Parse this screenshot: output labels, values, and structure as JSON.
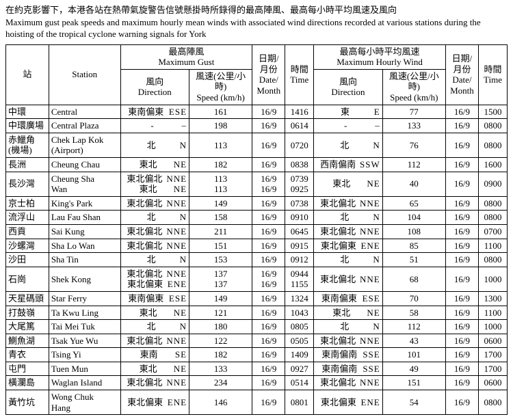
{
  "caption": {
    "zh": "在約克影響下，本港各站在熱帶氣旋警告信號懸掛時所錄得的最高陣風、最高每小時平均風速及風向",
    "en": "Maximum gust peak speeds and maximum hourly mean winds with associated wind directions recorded at various stations during   the hoisting of the tropical cyclone warning signals for York"
  },
  "headers": {
    "station_zh": "站",
    "station_en": "Station",
    "gust_group": "最高陣風\nMaximum Gust",
    "hourly_group": "最高每小時平均風速\nMaximum Hourly Wind",
    "dir": "風向\nDirection",
    "speed": "風速(公里/小時)\nSpeed (km/h)",
    "date": "日期/\n月份\nDate/\nMonth",
    "time": "時間\nTime"
  },
  "col_widths": {
    "stn_zh": 60,
    "stn_en": 100,
    "g_dir": 96,
    "g_spd": 88,
    "g_date": 46,
    "g_time": 40,
    "h_dir": 96,
    "h_spd": 88,
    "h_date": 46,
    "h_time": 40
  },
  "rows": [
    {
      "stn_zh": "中環",
      "stn_en": "Central",
      "g_dir_cn": "東南偏東",
      "g_dir_en": "ESE",
      "g_spd": "161",
      "g_date": "16/9",
      "g_time": "1416",
      "h_dir_cn": "東",
      "h_dir_en": "E",
      "h_spd": "77",
      "h_date": "16/9",
      "h_time": "1500"
    },
    {
      "stn_zh": "中環廣場",
      "stn_en": "Central Plaza",
      "g_dir_cn": "-",
      "g_dir_en": "–",
      "g_spd": "198",
      "g_date": "16/9",
      "g_time": "0614",
      "h_dir_cn": "-",
      "h_dir_en": "–",
      "h_spd": "133",
      "h_date": "16/9",
      "h_time": "0800"
    },
    {
      "stn_zh": "赤鱲角\n(機場)",
      "stn_en": "Chek Lap Kok\n(Airport)",
      "g_dir_cn": "北",
      "g_dir_en": "N",
      "g_spd": "113",
      "g_date": "16/9",
      "g_time": "0720",
      "h_dir_cn": "北",
      "h_dir_en": "N",
      "h_spd": "76",
      "h_date": "16/9",
      "h_time": "0800"
    },
    {
      "stn_zh": "長洲",
      "stn_en": "Cheung Chau",
      "g_dir_cn": "東北",
      "g_dir_en": "NE",
      "g_spd": "182",
      "g_date": "16/9",
      "g_time": "0838",
      "h_dir_cn": "西南偏南",
      "h_dir_en": "SSW",
      "h_spd": "112",
      "h_date": "16/9",
      "h_time": "1600"
    },
    {
      "stn_zh": "長沙灣",
      "stn_en": "Cheung Sha\nWan",
      "g_dir_cn": "東北偏北\n東北",
      "g_dir_en": "NNE\nNE",
      "g_spd": "113\n113",
      "g_date": "16/9\n16/9",
      "g_time": "0739\n0925",
      "h_dir_cn": "東北",
      "h_dir_en": "NE",
      "h_spd": "40",
      "h_date": "16/9",
      "h_time": "0900"
    },
    {
      "stn_zh": "京士柏",
      "stn_en": "King's Park",
      "g_dir_cn": "東北偏北",
      "g_dir_en": "NNE",
      "g_spd": "149",
      "g_date": "16/9",
      "g_time": "0738",
      "h_dir_cn": "東北偏北",
      "h_dir_en": "NNE",
      "h_spd": "65",
      "h_date": "16/9",
      "h_time": "0800"
    },
    {
      "stn_zh": "流浮山",
      "stn_en": "Lau Fau Shan",
      "g_dir_cn": "北",
      "g_dir_en": "N",
      "g_spd": "158",
      "g_date": "16/9",
      "g_time": "0910",
      "h_dir_cn": "北",
      "h_dir_en": "N",
      "h_spd": "104",
      "h_date": "16/9",
      "h_time": "0800"
    },
    {
      "stn_zh": "西貢",
      "stn_en": "Sai Kung",
      "g_dir_cn": "東北偏北",
      "g_dir_en": "NNE",
      "g_spd": "211",
      "g_date": "16/9",
      "g_time": "0645",
      "h_dir_cn": "東北偏北",
      "h_dir_en": "NNE",
      "h_spd": "108",
      "h_date": "16/9",
      "h_time": "0700"
    },
    {
      "stn_zh": "沙螺灣",
      "stn_en": "Sha Lo Wan",
      "g_dir_cn": "東北偏北",
      "g_dir_en": "NNE",
      "g_spd": "151",
      "g_date": "16/9",
      "g_time": "0915",
      "h_dir_cn": "東北偏東",
      "h_dir_en": "ENE",
      "h_spd": "85",
      "h_date": "16/9",
      "h_time": "1100"
    },
    {
      "stn_zh": "沙田",
      "stn_en": "Sha Tin",
      "g_dir_cn": "北",
      "g_dir_en": "N",
      "g_spd": "153",
      "g_date": "16/9",
      "g_time": "0912",
      "h_dir_cn": "北",
      "h_dir_en": "N",
      "h_spd": "51",
      "h_date": "16/9",
      "h_time": "0800"
    },
    {
      "stn_zh": "石崗",
      "stn_en": "Shek Kong",
      "g_dir_cn": "東北偏北\n東北偏東",
      "g_dir_en": "NNE\nENE",
      "g_spd": "137\n137",
      "g_date": "16/9\n16/9",
      "g_time": "0944\n1155",
      "h_dir_cn": "東北偏北",
      "h_dir_en": "NNE",
      "h_spd": "68",
      "h_date": "16/9",
      "h_time": "1000"
    },
    {
      "stn_zh": "天星碼頭",
      "stn_en": "Star Ferry",
      "g_dir_cn": "東南偏東",
      "g_dir_en": "ESE",
      "g_spd": "149",
      "g_date": "16/9",
      "g_time": "1324",
      "h_dir_cn": "東南偏東",
      "h_dir_en": "ESE",
      "h_spd": "70",
      "h_date": "16/9",
      "h_time": "1300"
    },
    {
      "stn_zh": "打鼓嶺",
      "stn_en": "Ta Kwu Ling",
      "g_dir_cn": "東北",
      "g_dir_en": "NE",
      "g_spd": "121",
      "g_date": "16/9",
      "g_time": "1043",
      "h_dir_cn": "東北",
      "h_dir_en": "NE",
      "h_spd": "58",
      "h_date": "16/9",
      "h_time": "1100"
    },
    {
      "stn_zh": "大尾篤",
      "stn_en": "Tai Mei Tuk",
      "g_dir_cn": "北",
      "g_dir_en": "N",
      "g_spd": "180",
      "g_date": "16/9",
      "g_time": "0805",
      "h_dir_cn": "北",
      "h_dir_en": "N",
      "h_spd": "112",
      "h_date": "16/9",
      "h_time": "1000"
    },
    {
      "stn_zh": "鰂魚湖",
      "stn_en": "Tsak Yue Wu",
      "g_dir_cn": "東北偏北",
      "g_dir_en": "NNE",
      "g_spd": "122",
      "g_date": "16/9",
      "g_time": "0505",
      "h_dir_cn": "東北偏北",
      "h_dir_en": "NNE",
      "h_spd": "43",
      "h_date": "16/9",
      "h_time": "0600"
    },
    {
      "stn_zh": "青衣",
      "stn_en": "Tsing Yi",
      "g_dir_cn": "東南",
      "g_dir_en": "SE",
      "g_spd": "182",
      "g_date": "16/9",
      "g_time": "1409",
      "h_dir_cn": "東南偏南",
      "h_dir_en": "SSE",
      "h_spd": "101",
      "h_date": "16/9",
      "h_time": "1700"
    },
    {
      "stn_zh": "屯門",
      "stn_en": "Tuen Mun",
      "g_dir_cn": "東北",
      "g_dir_en": "NE",
      "g_spd": "133",
      "g_date": "16/9",
      "g_time": "0927",
      "h_dir_cn": "東南偏南",
      "h_dir_en": "SSE",
      "h_spd": "49",
      "h_date": "16/9",
      "h_time": "1700"
    },
    {
      "stn_zh": "橫瀾島",
      "stn_en": "Waglan Island",
      "g_dir_cn": "東北偏北",
      "g_dir_en": "NNE",
      "g_spd": "234",
      "g_date": "16/9",
      "g_time": "0514",
      "h_dir_cn": "東北偏北",
      "h_dir_en": "NNE",
      "h_spd": "151",
      "h_date": "16/9",
      "h_time": "0600"
    },
    {
      "stn_zh": "黃竹坑",
      "stn_en": "Wong Chuk\nHang",
      "g_dir_cn": "東北偏東",
      "g_dir_en": "ENE",
      "g_spd": "146",
      "g_date": "16/9",
      "g_time": "0801",
      "h_dir_cn": "東北偏東",
      "h_dir_en": "ENE",
      "h_spd": "54",
      "h_date": "16/9",
      "h_time": "0800"
    }
  ]
}
